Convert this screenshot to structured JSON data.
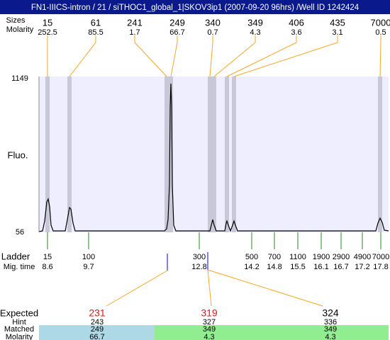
{
  "title": "FN1-IIICS-intron / 21 / siTHOC1_global_1|SKOV3ip1 (2007-09-20 96hrs) /Well ID 1242424",
  "peaks": {
    "labels": [
      "Sizes",
      "Molarity"
    ],
    "sizes": [
      15,
      61,
      241,
      249,
      340,
      349,
      406,
      435,
      7000
    ],
    "molarity": [
      252.5,
      85.5,
      1.7,
      66.7,
      0.7,
      4.3,
      3.6,
      3.1,
      0.5
    ]
  },
  "axis": {
    "label": "Fluo.",
    "max": 1149,
    "min": 56
  },
  "ladder": {
    "labels": [
      "Ladder",
      "Mig. time"
    ],
    "sizes": [
      15,
      100,
      300,
      500,
      700,
      1100,
      1900,
      2900,
      4900,
      7000
    ],
    "mig_times": [
      8.6,
      9.7,
      12.8,
      14.2,
      14.8,
      15.5,
      16.1,
      16.7,
      17.2,
      17.8
    ]
  },
  "expected": {
    "labels": [
      "Expected",
      "Hint",
      "Matched",
      "Molarity"
    ],
    "columns": [
      {
        "expected": 231,
        "hint": 243,
        "matched": 249,
        "molarity": 66.7
      },
      {
        "expected": 319,
        "hint": 327,
        "matched": 349,
        "molarity": 4.3
      },
      {
        "expected": 324,
        "hint": 336,
        "matched": 349,
        "molarity": 4.3
      }
    ]
  }
}
